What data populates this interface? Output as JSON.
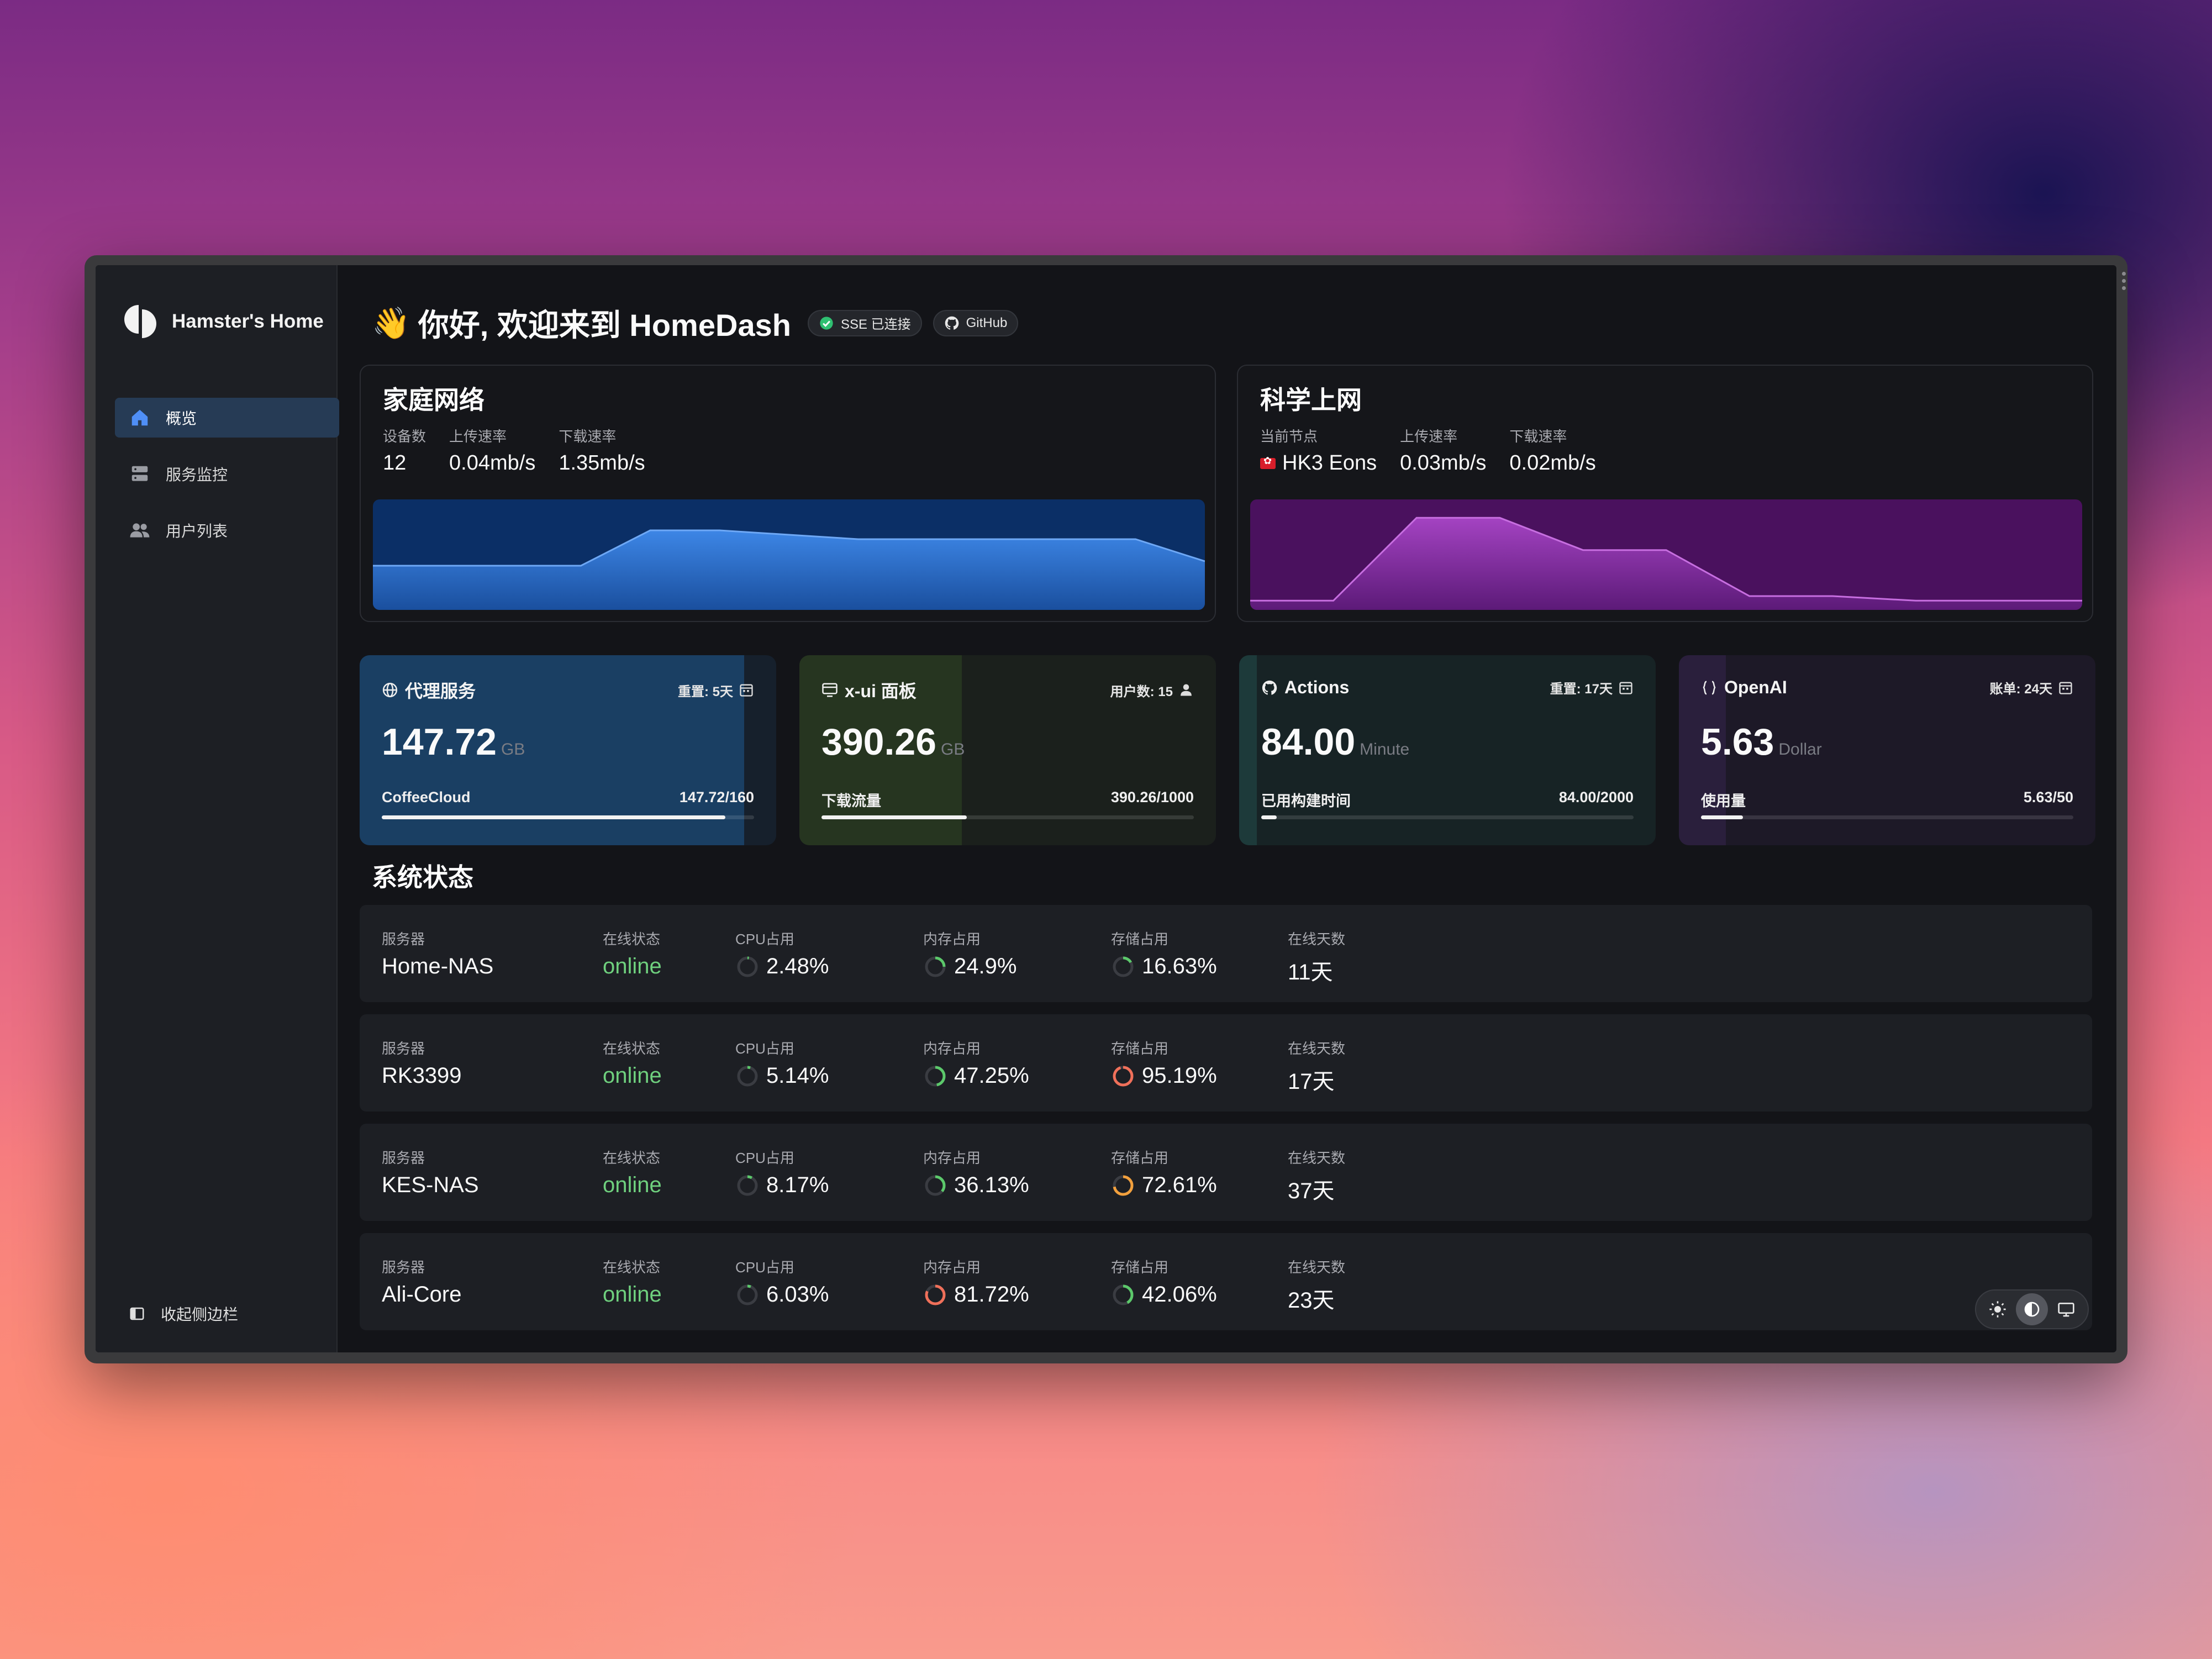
{
  "sidebar": {
    "brand": "Hamster's Home",
    "items": [
      {
        "label": "概览",
        "icon": "home-icon",
        "active": true
      },
      {
        "label": "服务监控",
        "icon": "server-icon",
        "active": false
      },
      {
        "label": "用户列表",
        "icon": "users-icon",
        "active": false
      }
    ],
    "collapse_label": "收起侧边栏"
  },
  "header": {
    "wave": "👋",
    "title": "你好, 欢迎来到 HomeDash",
    "sse_label": "SSE 已连接",
    "github_label": "GitHub"
  },
  "home_network": {
    "title": "家庭网络",
    "stats": [
      {
        "label": "设备数",
        "value": "12"
      },
      {
        "label": "上传速率",
        "value": "0.04mb/s"
      },
      {
        "label": "下载速率",
        "value": "1.35mb/s"
      }
    ],
    "chart_color": "#1e5fb8",
    "chart_data": {
      "type": "area",
      "values": [
        1,
        1,
        1,
        1,
        1.8,
        1.8,
        1.7,
        1.6,
        1.6,
        1.6,
        1.6,
        1.6,
        1.1
      ]
    }
  },
  "proxy_network": {
    "title": "科学上网",
    "stats": [
      {
        "label": "当前节点",
        "value": "HK3 Eons",
        "flag": "hk-flag-icon"
      },
      {
        "label": "上传速率",
        "value": "0.03mb/s"
      },
      {
        "label": "下载速率",
        "value": "0.02mb/s"
      }
    ],
    "chart_color": "#8b2aa6",
    "chart_data": {
      "type": "area",
      "values": [
        0.2,
        0.2,
        2.0,
        2.0,
        1.3,
        1.3,
        0.3,
        0.3,
        0.2,
        0.2,
        0.2
      ]
    }
  },
  "metrics": [
    {
      "name": "代理服务",
      "icon": "globe-icon",
      "meta": "重置: 5天",
      "meta_icon": "calendar-icon",
      "value": "147.72",
      "unit": "GB",
      "foot_label": "CoffeeCloud",
      "foot_value": "147.72/160",
      "progress": 0.923,
      "fill_color": "#1a3f63",
      "bg_color": "#16202c"
    },
    {
      "name": "x-ui 面板",
      "icon": "panel-icon",
      "meta": "用户数: 15",
      "meta_icon": "user-icon",
      "value": "390.26",
      "unit": "GB",
      "foot_label": "下载流量",
      "foot_value": "390.26/1000",
      "progress": 0.39,
      "fill_color": "#263520",
      "bg_color": "#1b201c"
    },
    {
      "name": "Actions",
      "icon": "github-icon",
      "meta": "重置: 17天",
      "meta_icon": "calendar-icon",
      "value": "84.00",
      "unit": "Minute",
      "foot_label": "已用构建时间",
      "foot_value": "84.00/2000",
      "progress": 0.042,
      "fill_color": "#1d3a3a",
      "bg_color": "#172325"
    },
    {
      "name": "OpenAI",
      "icon": "braces-icon",
      "meta": "账单: 24天",
      "meta_icon": "calendar-icon",
      "value": "5.63",
      "unit": "Dollar",
      "foot_label": "使用量",
      "foot_value": "5.63/50",
      "progress": 0.113,
      "fill_color": "#2a1f3c",
      "bg_color": "#1d1927"
    }
  ],
  "system": {
    "title": "系统状态",
    "labels": {
      "server": "服务器",
      "status": "在线状态",
      "cpu": "CPU占用",
      "mem": "内存占用",
      "disk": "存储占用",
      "days": "在线天数"
    },
    "servers": [
      {
        "name": "Home-NAS",
        "status": "online",
        "cpu": "2.48%",
        "cpu_v": 0.0248,
        "mem": "24.9%",
        "mem_v": 0.249,
        "disk": "16.63%",
        "disk_v": 0.1663,
        "days": "11天"
      },
      {
        "name": "RK3399",
        "status": "online",
        "cpu": "5.14%",
        "cpu_v": 0.0514,
        "mem": "47.25%",
        "mem_v": 0.4725,
        "disk": "95.19%",
        "disk_v": 0.9519,
        "days": "17天"
      },
      {
        "name": "KES-NAS",
        "status": "online",
        "cpu": "8.17%",
        "cpu_v": 0.0817,
        "mem": "36.13%",
        "mem_v": 0.3613,
        "disk": "72.61%",
        "disk_v": 0.7261,
        "days": "37天"
      },
      {
        "name": "Ali-Core",
        "status": "online",
        "cpu": "6.03%",
        "cpu_v": 0.0603,
        "mem": "81.72%",
        "mem_v": 0.8172,
        "disk": "42.06%",
        "disk_v": 0.4206,
        "days": "23天"
      }
    ]
  },
  "theme_switch": {
    "options": [
      "sun-icon",
      "moon-icon",
      "monitor-icon"
    ],
    "active": 1
  }
}
